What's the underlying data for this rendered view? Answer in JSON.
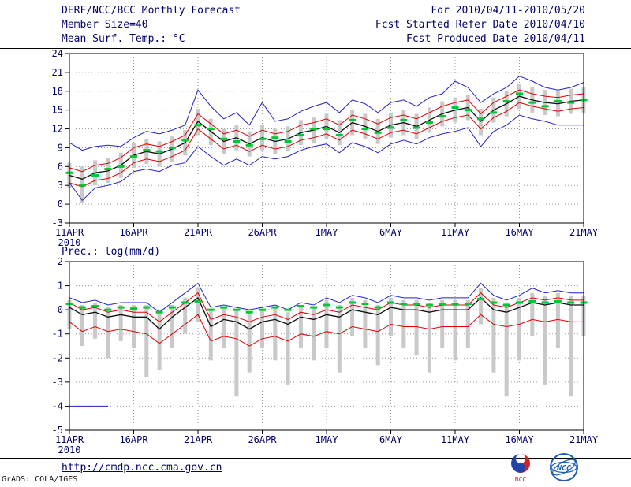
{
  "header": {
    "title": "DERF/NCC/BCC Monthly Forecast",
    "for_range": "For 2010/04/11-2010/05/20",
    "member_size": "Member Size=40",
    "refer_date": "Fcst Started Refer Date 2010/04/10",
    "produced_date": "Fcst Produced Date 2010/04/11",
    "temp_label": "Mean Surf. Temp.: °C",
    "prec_label": "Prec.: log(mm/d)"
  },
  "footer": {
    "url": "http://cmdp.ncc.cma.gov.cn",
    "credit": "GrADS: COLA/IGES",
    "bcc_label": "BCC",
    "ncc_label": "NCC"
  },
  "colors": {
    "text": "#00006a",
    "frame": "#000000",
    "grid": "#9a9a9a",
    "ensemble_max_min": "#2020d0",
    "quartiles": "#e00000",
    "ensemble_mean": "#101010",
    "observation": "#00c832",
    "spread_bar": "#c9c9c9"
  },
  "chart_data": [
    {
      "type": "line",
      "name": "temperature",
      "title": "Mean Surf. Temp.: °C",
      "x_count": 41,
      "x_tick_indices": [
        0,
        5,
        10,
        15,
        20,
        25,
        30,
        35,
        40
      ],
      "x_tick_labels": [
        "11APR",
        "16APR",
        "21APR",
        "26APR",
        "1MAY",
        "6MAY",
        "11MAY",
        "16MAY",
        "21MAY"
      ],
      "x_first_tick_sublabel": "2010",
      "ylim": [
        -3,
        24
      ],
      "yticks": [
        -3,
        0,
        3,
        6,
        9,
        12,
        15,
        18,
        21,
        24
      ],
      "grid": true,
      "legend": "none",
      "bars": {
        "name": "ensemble-spread",
        "color": "#c9c9c9",
        "low": [
          2.6,
          0.2,
          3.0,
          3.4,
          4.2,
          5.8,
          6.4,
          6.0,
          6.8,
          7.8,
          11.0,
          9.4,
          8.0,
          8.6,
          7.6,
          8.6,
          8.0,
          8.4,
          9.4,
          9.8,
          10.4,
          9.4,
          11.0,
          10.4,
          9.6,
          10.6,
          11.0,
          10.4,
          11.4,
          12.4,
          13.0,
          13.4,
          11.0,
          13.0,
          14.0,
          15.2,
          14.6,
          14.2,
          14.0,
          14.4,
          14.6
        ],
        "high": [
          6.6,
          6.0,
          7.0,
          7.3,
          8.2,
          9.8,
          10.4,
          10.0,
          10.8,
          11.8,
          15.2,
          13.6,
          12.0,
          12.6,
          11.6,
          12.6,
          12.0,
          12.4,
          13.4,
          13.8,
          14.4,
          13.4,
          15.0,
          14.4,
          13.6,
          14.6,
          15.0,
          14.4,
          15.4,
          16.4,
          17.0,
          17.4,
          15.2,
          17.0,
          18.0,
          19.2,
          18.6,
          18.2,
          18.0,
          18.4,
          18.6
        ]
      },
      "series": [
        {
          "name": "ensemble-max",
          "color": "#2020d0",
          "width": 1,
          "values": [
            9.8,
            8.6,
            9.2,
            9.4,
            9.2,
            10.6,
            11.6,
            11.2,
            11.8,
            12.6,
            18.2,
            15.6,
            13.6,
            14.6,
            12.6,
            16.2,
            13.2,
            13.6,
            14.8,
            15.6,
            16.2,
            14.6,
            16.6,
            16.0,
            14.6,
            16.2,
            16.6,
            15.6,
            17.0,
            17.6,
            19.6,
            18.6,
            16.2,
            17.6,
            18.6,
            20.4,
            19.6,
            18.6,
            18.2,
            18.6,
            19.4
          ]
        },
        {
          "name": "ensemble-min",
          "color": "#2020d0",
          "width": 1,
          "values": [
            3.4,
            0.6,
            2.6,
            3.0,
            3.6,
            5.2,
            5.6,
            5.2,
            6.2,
            6.6,
            9.2,
            7.6,
            6.2,
            7.2,
            6.2,
            7.6,
            7.2,
            7.6,
            8.6,
            9.2,
            9.6,
            8.2,
            9.8,
            9.2,
            8.2,
            9.6,
            10.2,
            9.6,
            10.6,
            11.2,
            11.6,
            12.2,
            9.2,
            11.6,
            12.6,
            14.2,
            13.6,
            13.2,
            12.6,
            12.6,
            12.6
          ]
        },
        {
          "name": "upper-quartile",
          "color": "#e00000",
          "width": 1,
          "values": [
            5.8,
            5.2,
            6.2,
            6.5,
            7.4,
            9.0,
            9.6,
            9.2,
            10.0,
            11.0,
            14.4,
            12.8,
            11.2,
            11.8,
            10.8,
            11.8,
            11.2,
            11.6,
            12.6,
            13.0,
            13.6,
            12.6,
            14.2,
            13.6,
            12.8,
            13.8,
            14.2,
            13.6,
            14.6,
            15.6,
            16.2,
            16.6,
            14.4,
            16.2,
            17.2,
            18.2,
            17.6,
            17.2,
            17.0,
            17.4,
            17.6
          ]
        },
        {
          "name": "lower-quartile",
          "color": "#e00000",
          "width": 1,
          "values": [
            3.4,
            2.8,
            3.8,
            4.1,
            5.0,
            6.6,
            7.2,
            6.8,
            7.6,
            8.6,
            12.0,
            10.4,
            8.8,
            9.4,
            8.4,
            9.4,
            8.8,
            9.2,
            10.2,
            10.6,
            11.2,
            10.2,
            11.8,
            11.2,
            10.4,
            11.4,
            11.8,
            11.2,
            12.2,
            13.2,
            13.8,
            14.2,
            12.0,
            13.8,
            14.8,
            16.2,
            15.6,
            15.2,
            14.8,
            15.2,
            15.4
          ]
        },
        {
          "name": "ensemble-mean",
          "color": "#101010",
          "width": 1.3,
          "values": [
            4.6,
            4.0,
            5.0,
            5.3,
            6.2,
            7.8,
            8.4,
            8.0,
            8.8,
            9.8,
            13.2,
            11.6,
            10.0,
            10.6,
            9.6,
            10.6,
            10.0,
            10.4,
            11.4,
            11.8,
            12.4,
            11.4,
            13.0,
            12.4,
            11.6,
            12.6,
            13.0,
            12.4,
            13.4,
            14.4,
            15.0,
            15.4,
            13.2,
            15.0,
            16.0,
            17.2,
            16.6,
            16.2,
            16.0,
            16.4,
            16.6
          ]
        }
      ],
      "dashes": {
        "name": "observation",
        "color": "#00c832",
        "width": 3,
        "len": 9,
        "values": [
          5.0,
          3.0,
          4.6,
          5.6,
          6.0,
          7.6,
          8.6,
          8.4,
          9.0,
          10.2,
          12.6,
          12.0,
          10.4,
          10.0,
          9.4,
          10.4,
          10.6,
          10.0,
          11.0,
          12.0,
          12.0,
          11.0,
          13.4,
          12.0,
          11.4,
          12.2,
          13.4,
          12.2,
          13.0,
          14.0,
          15.4,
          15.0,
          13.6,
          14.6,
          16.4,
          17.6,
          16.2,
          15.6,
          16.4,
          16.2,
          16.6
        ]
      }
    },
    {
      "type": "line",
      "name": "precipitation",
      "title": "Prec.: log(mm/d)",
      "x_count": 41,
      "x_tick_indices": [
        0,
        5,
        10,
        15,
        20,
        25,
        30,
        35,
        40
      ],
      "x_tick_labels": [
        "11APR",
        "16APR",
        "21APR",
        "26APR",
        "1MAY",
        "6MAY",
        "11MAY",
        "16MAY",
        "21MAY"
      ],
      "x_first_tick_sublabel": "2010",
      "ylim": [
        -5,
        2
      ],
      "yticks": [
        -5,
        -4,
        -3,
        -2,
        -1,
        0,
        1,
        2
      ],
      "grid": true,
      "legend": "none",
      "floor_segment": {
        "name": "ensemble-min-floor",
        "color": "#2020d0",
        "y": -4,
        "from_index": 0,
        "to_index": 3
      },
      "bars": {
        "name": "ensemble-spread",
        "color": "#c9c9c9",
        "low": [
          -0.8,
          -1.5,
          -1.2,
          -2.0,
          -1.3,
          -1.6,
          -2.8,
          -2.5,
          -1.6,
          -1.0,
          -0.5,
          -2.1,
          -1.6,
          -3.6,
          -2.6,
          -1.6,
          -2.1,
          -3.1,
          -1.6,
          -2.1,
          -1.6,
          -2.6,
          -1.1,
          -1.6,
          -2.3,
          -1.1,
          -1.6,
          -1.9,
          -2.6,
          -1.6,
          -2.1,
          -1.6,
          -0.6,
          -2.6,
          -3.6,
          -2.1,
          -1.1,
          -3.1,
          -1.6,
          -3.6,
          -1.1
        ],
        "high": [
          0.4,
          0.2,
          0.3,
          0.1,
          0.2,
          0.2,
          0.2,
          0.0,
          0.2,
          0.5,
          0.9,
          0.0,
          0.1,
          0.0,
          -0.1,
          0.0,
          0.1,
          -0.1,
          0.2,
          0.1,
          0.4,
          0.2,
          0.5,
          0.4,
          0.2,
          0.5,
          0.4,
          0.4,
          0.3,
          0.4,
          0.4,
          0.4,
          0.9,
          0.5,
          0.3,
          0.5,
          0.7,
          0.6,
          0.7,
          0.6,
          0.6
        ]
      },
      "series": [
        {
          "name": "ensemble-max",
          "color": "#2020d0",
          "width": 1,
          "values": [
            0.5,
            0.3,
            0.4,
            0.2,
            0.3,
            0.3,
            0.3,
            -0.1,
            0.3,
            0.7,
            1.1,
            0.1,
            0.2,
            0.1,
            0.0,
            0.1,
            0.2,
            0.0,
            0.3,
            0.2,
            0.5,
            0.3,
            0.6,
            0.5,
            0.3,
            0.6,
            0.5,
            0.5,
            0.4,
            0.5,
            0.5,
            0.5,
            1.1,
            0.6,
            0.4,
            0.6,
            0.9,
            0.7,
            0.8,
            0.7,
            0.7
          ]
        },
        {
          "name": "upper-quartile",
          "color": "#e00000",
          "width": 1,
          "values": [
            0.3,
            0.0,
            0.1,
            -0.1,
            0.0,
            -0.1,
            -0.1,
            -0.5,
            -0.1,
            0.3,
            0.7,
            -0.4,
            -0.2,
            -0.3,
            -0.5,
            -0.3,
            -0.2,
            -0.4,
            -0.1,
            -0.2,
            0.0,
            -0.1,
            0.2,
            0.1,
            0.0,
            0.3,
            0.2,
            0.2,
            0.1,
            0.2,
            0.2,
            0.2,
            0.7,
            0.2,
            0.1,
            0.3,
            0.5,
            0.4,
            0.5,
            0.4,
            0.4
          ]
        },
        {
          "name": "lower-quartile",
          "color": "#e00000",
          "width": 1,
          "values": [
            -0.5,
            -0.9,
            -0.7,
            -0.9,
            -0.8,
            -0.9,
            -1.0,
            -1.4,
            -1.0,
            -0.6,
            -0.2,
            -1.3,
            -1.1,
            -1.2,
            -1.5,
            -1.2,
            -1.1,
            -1.3,
            -1.0,
            -1.1,
            -0.9,
            -1.0,
            -0.7,
            -0.8,
            -0.9,
            -0.6,
            -0.7,
            -0.7,
            -0.8,
            -0.7,
            -0.7,
            -0.7,
            -0.2,
            -0.6,
            -0.7,
            -0.6,
            -0.4,
            -0.5,
            -0.4,
            -0.5,
            -0.5
          ]
        },
        {
          "name": "ensemble-mean",
          "color": "#101010",
          "width": 1.3,
          "values": [
            0.1,
            -0.2,
            -0.1,
            -0.3,
            -0.2,
            -0.3,
            -0.3,
            -0.8,
            -0.3,
            0.1,
            0.5,
            -0.7,
            -0.4,
            -0.5,
            -0.8,
            -0.5,
            -0.4,
            -0.6,
            -0.3,
            -0.4,
            -0.2,
            -0.3,
            0.0,
            -0.1,
            -0.2,
            0.1,
            0.0,
            0.0,
            -0.1,
            0.0,
            0.0,
            0.0,
            0.5,
            0.0,
            -0.1,
            0.1,
            0.3,
            0.2,
            0.3,
            0.2,
            0.2
          ]
        }
      ],
      "dashes": {
        "name": "observation",
        "color": "#00c832",
        "width": 3,
        "len": 9,
        "values": [
          0.25,
          0.1,
          0.15,
          0.0,
          0.1,
          0.05,
          0.1,
          -0.1,
          0.1,
          0.3,
          0.35,
          0.0,
          0.1,
          0.0,
          -0.1,
          0.0,
          0.1,
          0.0,
          0.15,
          0.1,
          0.2,
          0.1,
          0.3,
          0.25,
          0.1,
          0.3,
          0.25,
          0.25,
          0.2,
          0.25,
          0.25,
          0.25,
          0.45,
          0.3,
          0.2,
          0.3,
          0.35,
          0.3,
          0.35,
          0.3,
          0.3
        ]
      }
    }
  ]
}
